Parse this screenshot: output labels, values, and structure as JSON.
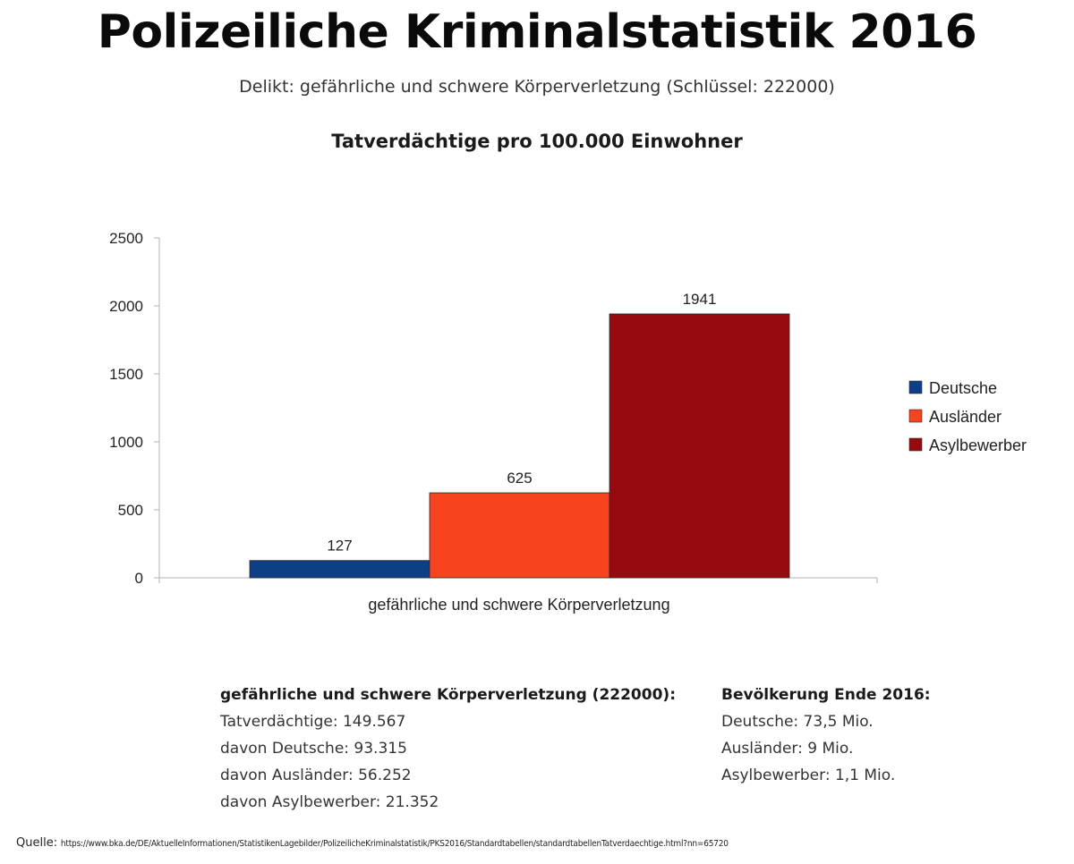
{
  "header": {
    "title": "Polizeiliche Kriminalstatistik 2016",
    "subtitle": "Delikt: gefährliche und schwere Körperverletzung (Schlüssel: 222000)"
  },
  "chart_data": {
    "type": "bar",
    "title": "Tatverdächtige pro 100.000 Einwohner",
    "categories": [
      "gefährliche und schwere Körperverletzung"
    ],
    "series": [
      {
        "name": "Deutsche",
        "values": [
          127
        ],
        "color": "#0e3f86"
      },
      {
        "name": "Ausländer",
        "values": [
          625
        ],
        "color": "#f8431f"
      },
      {
        "name": "Asylbewerber",
        "values": [
          1941
        ],
        "color": "#970a0f"
      }
    ],
    "xlabel": "gefährliche und schwere Körperverletzung",
    "ylabel": "",
    "ylim": [
      0,
      2500
    ],
    "yticks": [
      0,
      500,
      1000,
      1500,
      2000,
      2500
    ],
    "data_labels": true,
    "legend": "right",
    "grid": false
  },
  "info_left": {
    "heading": "gefährliche und schwere Körperverletzung (222000):",
    "lines": [
      "Tatverdächtige: 149.567",
      "davon Deutsche: 93.315",
      "davon Ausländer: 56.252",
      "davon Asylbewerber: 21.352"
    ]
  },
  "info_right": {
    "heading": "Bevölkerung Ende 2016:",
    "lines": [
      "Deutsche: 73,5 Mio.",
      "Ausländer: 9 Mio.",
      "Asylbewerber: 1,1 Mio."
    ]
  },
  "source": {
    "label": "Quelle:",
    "url": "https://www.bka.de/DE/AktuelleInformationen/StatistikenLagebilder/PolizeilicheKriminalstatistik/PKS2016/Standardtabellen/standardtabellenTatverdaechtige.html?nn=65720"
  }
}
